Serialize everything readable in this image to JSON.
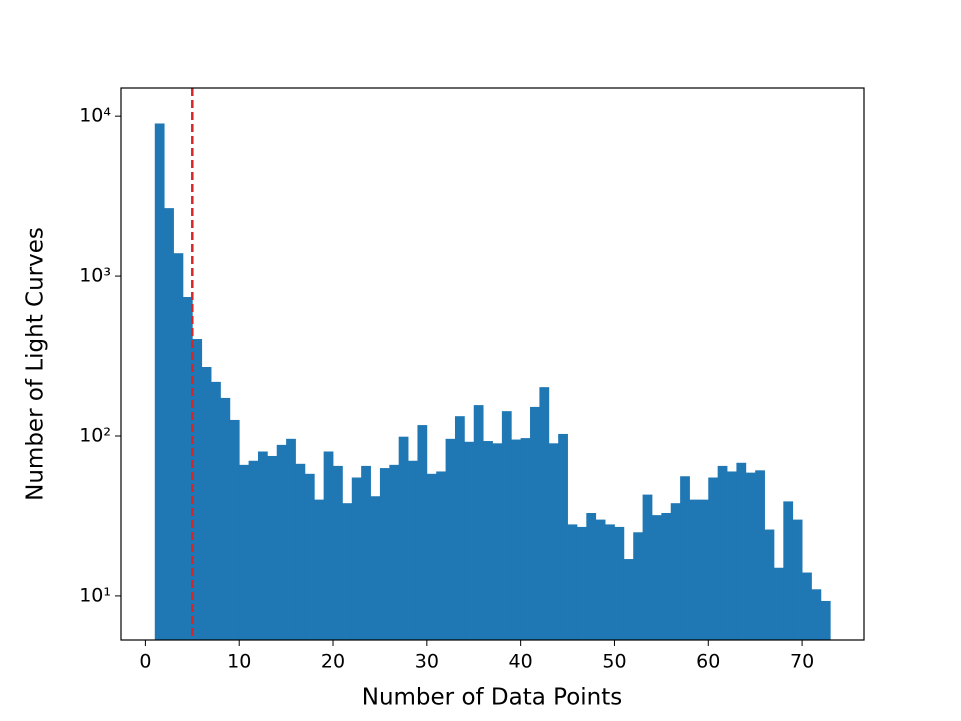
{
  "chart_data": {
    "type": "histogram",
    "xlabel": "Number of Data Points",
    "ylabel": "Number of Light Curves",
    "bins": [
      1,
      2,
      3,
      4,
      5,
      6,
      7,
      8,
      9,
      10,
      11,
      12,
      13,
      14,
      15,
      16,
      17,
      18,
      19,
      20,
      21,
      22,
      23,
      24,
      25,
      26,
      27,
      28,
      29,
      30,
      31,
      32,
      33,
      34,
      35,
      36,
      37,
      38,
      39,
      40,
      41,
      42,
      43,
      44,
      45,
      46,
      47,
      48,
      49,
      50,
      51,
      52,
      53,
      54,
      55,
      56,
      57,
      58,
      59,
      60,
      61,
      62,
      63,
      64,
      65,
      66,
      67,
      68,
      69,
      70,
      71,
      72,
      73
    ],
    "values": [
      9000,
      2660,
      1390,
      740,
      404,
      270,
      218,
      173,
      126,
      66,
      70,
      80,
      75,
      88,
      96,
      67,
      58,
      40,
      80,
      65,
      38,
      55,
      65,
      42,
      63,
      66,
      99,
      70,
      117,
      58,
      60,
      96,
      133,
      92,
      156,
      93,
      90,
      143,
      95,
      97,
      152,
      202,
      90,
      103,
      28,
      27,
      33,
      30,
      28,
      27,
      17,
      25,
      43,
      32,
      33,
      38,
      56,
      40,
      40,
      55,
      65,
      60,
      68,
      59,
      61,
      26,
      15,
      39,
      30,
      14,
      11,
      9.3
    ],
    "color": "#1f77b4",
    "xlim": [
      -2.6,
      76.6
    ],
    "xticks": [
      0,
      10,
      20,
      30,
      40,
      50,
      60,
      70
    ],
    "ylim": [
      5.3,
      15000
    ],
    "yscale": "log",
    "yticks": [
      {
        "value": 10,
        "label": "10¹"
      },
      {
        "value": 100,
        "label": "10²"
      },
      {
        "value": 1000,
        "label": "10³"
      },
      {
        "value": 10000,
        "label": "10⁴"
      }
    ],
    "vline": {
      "x": 5,
      "color": "#d62728"
    }
  }
}
